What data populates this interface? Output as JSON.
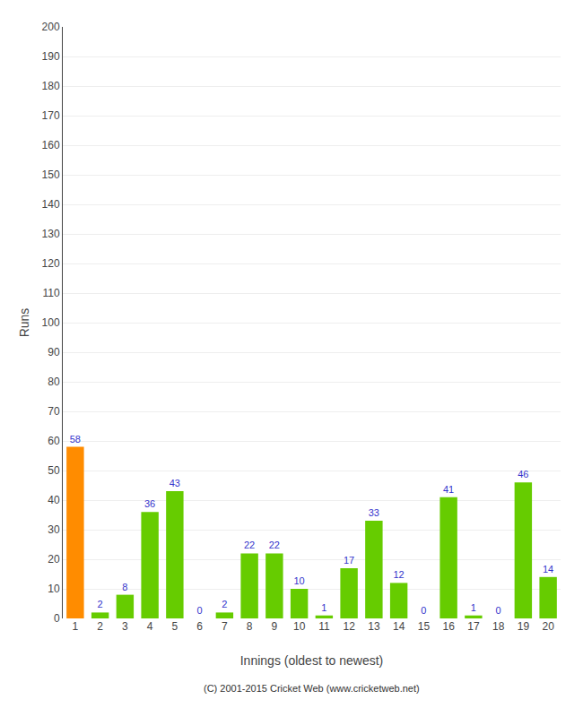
{
  "chart_data": {
    "type": "bar",
    "xlabel": "Innings (oldest to newest)",
    "ylabel": "Runs",
    "categories": [
      "1",
      "2",
      "3",
      "4",
      "5",
      "6",
      "7",
      "8",
      "9",
      "10",
      "11",
      "12",
      "13",
      "14",
      "15",
      "16",
      "17",
      "18",
      "19",
      "20"
    ],
    "values": [
      58,
      2,
      8,
      36,
      43,
      0,
      2,
      22,
      22,
      10,
      1,
      17,
      33,
      12,
      0,
      41,
      1,
      0,
      46,
      14
    ],
    "colors": [
      "#ff8c00",
      "#66cc00",
      "#66cc00",
      "#66cc00",
      "#66cc00",
      "#66cc00",
      "#66cc00",
      "#66cc00",
      "#66cc00",
      "#66cc00",
      "#66cc00",
      "#66cc00",
      "#66cc00",
      "#66cc00",
      "#66cc00",
      "#66cc00",
      "#66cc00",
      "#66cc00",
      "#66cc00",
      "#66cc00"
    ],
    "ylim": [
      0,
      200
    ],
    "yticks": [
      0,
      10,
      20,
      30,
      40,
      50,
      60,
      70,
      80,
      90,
      100,
      110,
      120,
      130,
      140,
      150,
      160,
      170,
      180,
      190,
      200
    ],
    "grid": true,
    "data_labels": true,
    "annotations": [
      "(C) 2001-2015 Cricket Web (www.cricketweb.net)"
    ]
  }
}
